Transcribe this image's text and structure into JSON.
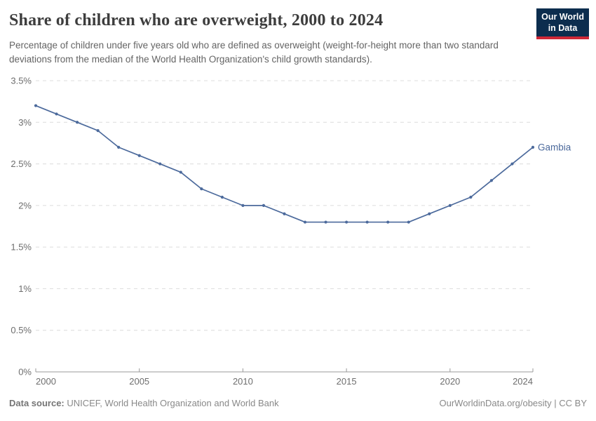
{
  "header": {
    "title": "Share of children who are overweight, 2000 to 2024",
    "subtitle": "Percentage of children under five years old who are defined as overweight (weight-for-height more than two standard deviations from the median of the World Health Organization's child growth standards).",
    "logo": {
      "line1": "Our World",
      "line2": "in Data",
      "bg_color": "#0C2D4E",
      "accent_color": "#CE2837"
    }
  },
  "chart_data": {
    "type": "line",
    "title": "Share of children who are overweight, 2000 to 2024",
    "xlabel": "",
    "ylabel": "",
    "unit": "%",
    "xlim": [
      2000,
      2024
    ],
    "ylim": [
      0,
      3.5
    ],
    "grid": "horizontal-dashed",
    "legend_position": "end-of-line-label",
    "x": [
      2000,
      2001,
      2002,
      2003,
      2004,
      2005,
      2006,
      2007,
      2008,
      2009,
      2010,
      2011,
      2012,
      2013,
      2014,
      2015,
      2016,
      2017,
      2018,
      2019,
      2020,
      2021,
      2022,
      2023,
      2024
    ],
    "series": [
      {
        "name": "Gambia",
        "color": "#4C6A9C",
        "values": [
          3.2,
          3.1,
          3.0,
          2.9,
          2.7,
          2.6,
          2.5,
          2.4,
          2.2,
          2.1,
          2.0,
          2.0,
          1.9,
          1.8,
          1.8,
          1.8,
          1.8,
          1.8,
          1.8,
          1.9,
          2.0,
          2.1,
          2.3,
          2.5,
          2.7
        ]
      }
    ],
    "y_ticks": [
      {
        "value": 3.5,
        "label": "3.5%"
      },
      {
        "value": 3.0,
        "label": "3%"
      },
      {
        "value": 2.5,
        "label": "2.5%"
      },
      {
        "value": 2.0,
        "label": "2%"
      },
      {
        "value": 1.5,
        "label": "1.5%"
      },
      {
        "value": 1.0,
        "label": "1%"
      },
      {
        "value": 0.5,
        "label": "0.5%"
      },
      {
        "value": 0.0,
        "label": "0%"
      }
    ],
    "x_ticks": [
      {
        "value": 2000,
        "label": "2000"
      },
      {
        "value": 2005,
        "label": "2005"
      },
      {
        "value": 2010,
        "label": "2010"
      },
      {
        "value": 2015,
        "label": "2015"
      },
      {
        "value": 2020,
        "label": "2020"
      },
      {
        "value": 2024,
        "label": "2024"
      }
    ],
    "colors": {
      "grid": "#dcdcdc",
      "axis": "#999999",
      "tick_label": "#6e6e6e"
    }
  },
  "footer": {
    "datasource_label": "Data source:",
    "datasource_text": " UNICEF, World Health Organization and World Bank",
    "right_text": "OurWorldinData.org/obesity | CC BY"
  }
}
